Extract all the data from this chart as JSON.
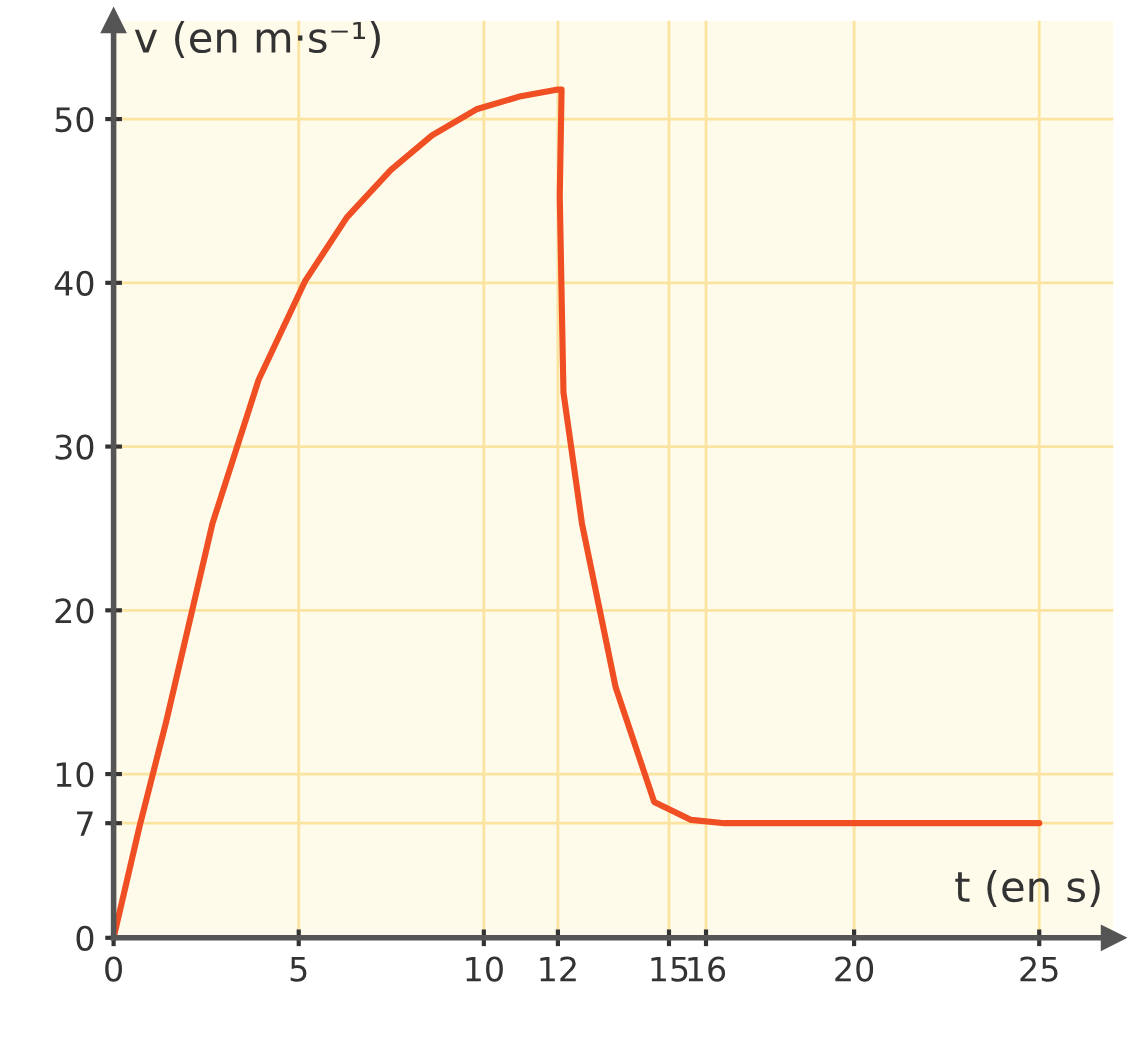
{
  "chart_data": {
    "type": "line",
    "xlabel": "t (en s)",
    "ylabel": "v (en m·s⁻¹)",
    "x": [
      0,
      0.7,
      1.42,
      2.67,
      3.92,
      5.17,
      6.3,
      7.49,
      8.6,
      9.8,
      11,
      12,
      12.1,
      12.05,
      12.15,
      12.65,
      13.56,
      14.6,
      15.6,
      16.5,
      20,
      25
    ],
    "series": [
      {
        "color": "#f04e23",
        "values": [
          0,
          6.8,
          13.2,
          25.3,
          34.1,
          40.1,
          44,
          46.9,
          49,
          50.6,
          51.4,
          51.8,
          51.8,
          45.3,
          33.3,
          25.3,
          15.3,
          8.3,
          7.2,
          7,
          7,
          7
        ]
      }
    ],
    "xlim": [
      0,
      27
    ],
    "ylim": [
      0,
      56
    ],
    "xticks": [
      0,
      5,
      10,
      12,
      15,
      16,
      20,
      25
    ],
    "yticks": [
      0,
      7,
      10,
      20,
      30,
      40,
      50
    ],
    "grid": true,
    "marker": "none",
    "line_style": "solid"
  }
}
